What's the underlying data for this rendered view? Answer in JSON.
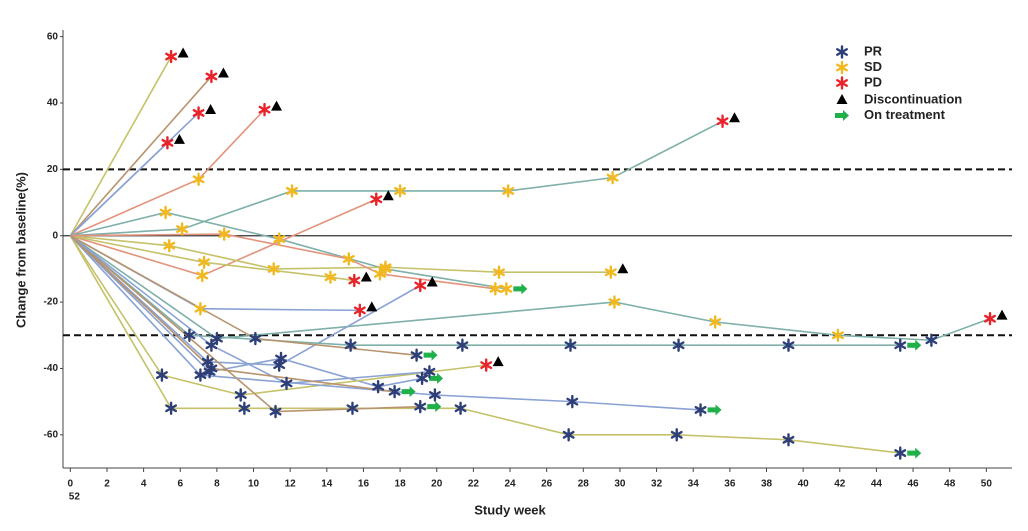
{
  "chart_data": {
    "type": "spider",
    "x_label": "Study week",
    "y_label": "Change from baseline(%)",
    "xlim": [
      -0.4,
      51.4
    ],
    "ylim": [
      -70,
      62
    ],
    "xticks": [
      0,
      2,
      4,
      6,
      8,
      10,
      12,
      14,
      16,
      18,
      20,
      22,
      24,
      26,
      28,
      30,
      32,
      34,
      36,
      38,
      40,
      42,
      44,
      46,
      48,
      50
    ],
    "yticks": [
      -60,
      -40,
      -20,
      0,
      20,
      40,
      60
    ],
    "xtick_stray_label": "52",
    "reference_lines": [
      {
        "value": 20,
        "style": "dashed"
      },
      {
        "value": -30,
        "style": "dashed"
      },
      {
        "value": 0,
        "style": "solid"
      }
    ],
    "legend": [
      {
        "label": "PR",
        "color": "#2e3f78",
        "marker": "star"
      },
      {
        "label": "SD",
        "color": "#f2b820",
        "marker": "star"
      },
      {
        "label": "PD",
        "color": "#e8232a",
        "marker": "star"
      },
      {
        "label": "Discontinuation",
        "color": "#000000",
        "marker": "triangle"
      },
      {
        "label": "On treatment",
        "color": "#1fb04a",
        "marker": "arrow"
      }
    ],
    "series": [
      {
        "color": "#c5c26a",
        "x": [
          0,
          5.5
        ],
        "values": [
          0,
          54
        ],
        "response": [
          null,
          "PD"
        ],
        "end": "Discontinuation"
      },
      {
        "color": "#b8946e",
        "x": [
          0,
          7.7
        ],
        "values": [
          0,
          48
        ],
        "response": [
          null,
          "PD"
        ],
        "end": "Discontinuation"
      },
      {
        "color": "#8aa2d4",
        "x": [
          0,
          7.0
        ],
        "values": [
          0,
          37
        ],
        "response": [
          null,
          "PD"
        ],
        "end": "Discontinuation"
      },
      {
        "color": "#8aa2d4",
        "x": [
          0,
          5.3
        ],
        "values": [
          0,
          28
        ],
        "response": [
          null,
          "PD"
        ],
        "end": "Discontinuation"
      },
      {
        "color": "#e3937c",
        "x": [
          0,
          7.0,
          10.6
        ],
        "values": [
          0,
          17,
          38
        ],
        "response": [
          null,
          "SD",
          "PD"
        ],
        "end": "Discontinuation"
      },
      {
        "color": "#7fb0aa",
        "x": [
          0,
          5.2,
          11.4,
          17.2,
          23.8
        ],
        "values": [
          0,
          7,
          -1,
          -10,
          -16
        ],
        "response": [
          null,
          "SD",
          "SD",
          "SD",
          "SD"
        ],
        "end": "On treatment"
      },
      {
        "color": "#7fb0aa",
        "x": [
          0,
          6.1,
          12.1,
          18.0,
          23.9,
          29.6,
          35.6
        ],
        "values": [
          0,
          2,
          13.5,
          13.5,
          13.5,
          17.5,
          34.5
        ],
        "response": [
          null,
          "SD",
          "SD",
          "SD",
          "SD",
          "SD",
          "PD"
        ],
        "end": "Discontinuation"
      },
      {
        "color": "#e3937c",
        "x": [
          0,
          7.2,
          16.7
        ],
        "values": [
          0,
          -12,
          11
        ],
        "response": [
          null,
          "SD",
          "PD"
        ],
        "end": "Discontinuation"
      },
      {
        "color": "#c5c26a",
        "x": [
          0,
          7.3,
          14.2,
          15.5
        ],
        "values": [
          0,
          -8,
          -12.5,
          -13.5
        ],
        "response": [
          null,
          "SD",
          "SD",
          "PD"
        ],
        "end": "Discontinuation"
      },
      {
        "color": "#c5c26a",
        "x": [
          0,
          5.4,
          11.1,
          17.2,
          23.4,
          29.5
        ],
        "values": [
          0,
          -3,
          -10,
          -9.5,
          -11,
          -11
        ],
        "response": [
          null,
          "SD",
          "SD",
          "SD",
          "SD",
          "SD"
        ],
        "end": "Discontinuation"
      },
      {
        "color": "#e3937c",
        "x": [
          0,
          8.4,
          15.2,
          16.9,
          23.2
        ],
        "values": [
          0,
          0.5,
          -7,
          -11.5,
          -16
        ],
        "response": [
          null,
          "SD",
          "SD",
          "SD",
          "SD"
        ],
        "end": null
      },
      {
        "color": "#7fb0aa",
        "x": [
          0,
          8.0,
          29.7,
          35.2,
          41.9,
          47.0,
          50.2
        ],
        "values": [
          0,
          -31,
          -20,
          -26,
          -30,
          -31.5,
          -25
        ],
        "response": [
          null,
          "PR",
          "SD",
          "SD",
          "SD",
          "PR",
          "PD"
        ],
        "end": "Discontinuation"
      },
      {
        "color": "#8aa2d4",
        "x": [
          0,
          7.1,
          15.8
        ],
        "values": [
          0,
          -22,
          -22.5
        ],
        "response": [
          null,
          "SD",
          "PD"
        ],
        "end": "Discontinuation"
      },
      {
        "color": "#8aa2d4",
        "x": [
          0,
          7.5,
          11.4,
          19.1
        ],
        "values": [
          0,
          -38,
          -39,
          -15
        ],
        "response": [
          null,
          "PR",
          "PR",
          "PD"
        ],
        "end": "Discontinuation"
      },
      {
        "color": "#7fb0aa",
        "x": [
          0,
          6.5,
          15.3,
          21.4,
          27.3,
          33.2,
          39.2,
          45.3
        ],
        "values": [
          0,
          -30,
          -33,
          -33,
          -33,
          -33,
          -33,
          -33
        ],
        "response": [
          null,
          "PR",
          "PR",
          "PR",
          "PR",
          "PR",
          "PR",
          "PR"
        ],
        "end": "On treatment"
      },
      {
        "color": "#b8946e",
        "x": [
          0,
          10.1,
          18.9
        ],
        "values": [
          0,
          -31,
          -36
        ],
        "response": [
          null,
          "PR",
          "PR"
        ],
        "end": "On treatment"
      },
      {
        "color": "#8aa2d4",
        "x": [
          0,
          7.6,
          11.5,
          16.8,
          19.2
        ],
        "values": [
          0,
          -41,
          -37,
          -45.5,
          -43
        ],
        "response": [
          null,
          "PR",
          "PR",
          "PR",
          "PR"
        ],
        "end": "On treatment"
      },
      {
        "color": "#c5c26a",
        "x": [
          0,
          5.0,
          9.3,
          22.7
        ],
        "values": [
          0,
          -42,
          -48,
          -39
        ],
        "response": [
          null,
          "PR",
          "PR",
          "PD"
        ],
        "end": "Discontinuation"
      },
      {
        "color": "#c5c26a",
        "x": [
          0,
          5.5,
          9.5,
          15.4,
          21.3,
          27.2,
          33.1,
          39.2,
          45.3
        ],
        "values": [
          0,
          -52,
          -52,
          -52,
          -52,
          -60,
          -60,
          -61.5,
          -65.5
        ],
        "response": [
          null,
          "PR",
          "PR",
          "PR",
          "PR",
          "PR",
          "PR",
          "PR",
          "PR"
        ],
        "end": "On treatment"
      },
      {
        "color": "#8aa2d4",
        "x": [
          0,
          7.1,
          19.9,
          27.4,
          34.4
        ],
        "values": [
          0,
          -42,
          -48,
          -50,
          -52.5
        ],
        "response": [
          null,
          "PR",
          "PR",
          "PR",
          "PR"
        ],
        "end": "On treatment"
      },
      {
        "color": "#b8946e",
        "x": [
          0,
          11.2,
          19.1
        ],
        "values": [
          0,
          -53,
          -51.5
        ],
        "response": [
          null,
          "PR",
          "PR"
        ],
        "end": "On treatment"
      },
      {
        "color": "#8aa2d4",
        "x": [
          0,
          7.7,
          11.8,
          19.6
        ],
        "values": [
          0,
          -33,
          -44.5,
          -41
        ],
        "response": [
          null,
          "PR",
          "PR",
          "PR"
        ],
        "end": null
      },
      {
        "color": "#b8946e",
        "x": [
          0,
          7.7,
          17.7
        ],
        "values": [
          0,
          -40,
          -47
        ],
        "response": [
          null,
          "PR",
          "PR"
        ],
        "end": "On treatment"
      }
    ]
  }
}
